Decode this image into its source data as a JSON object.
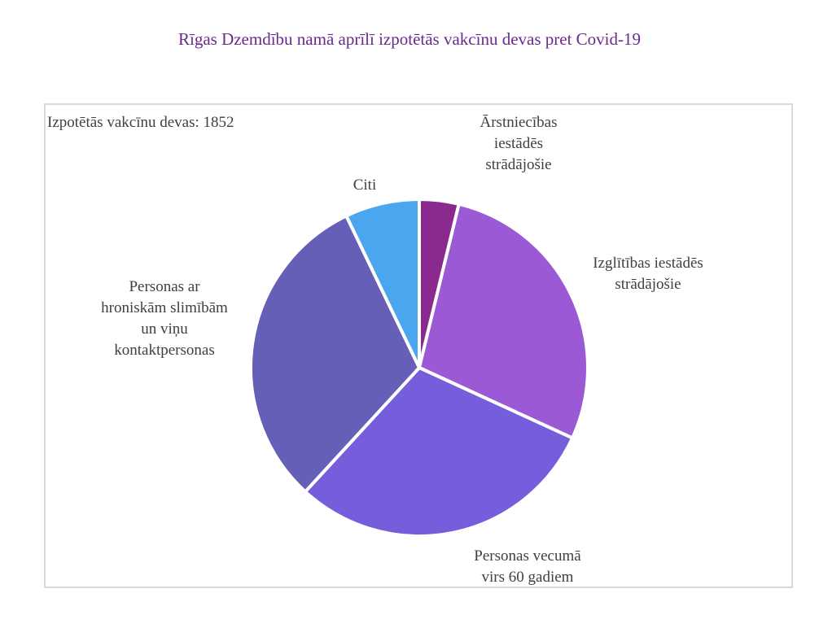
{
  "title": "Rīgas Dzemdību namā aprīlī izpotētās vakcīnu devas pret Covid-19",
  "note": "Izpotētās vakcīnu devas: 1852",
  "chart_data": {
    "type": "pie",
    "title": "Rīgas Dzemdību namā aprīlī izpotētās vakcīnu devas pret Covid-19",
    "total": 1852,
    "legend": "none",
    "slices": [
      {
        "label": [
          "Ārstniecības",
          "iestādēs",
          "strādājošie"
        ],
        "value": 70,
        "color": "#8b2a8e"
      },
      {
        "label": [
          "Izglītības iestādēs",
          "strādājošie"
        ],
        "value": 520,
        "color": "#9b59d6"
      },
      {
        "label": [
          "Personas vecumā",
          "virs 60 gadiem"
        ],
        "value": 555,
        "color": "#755ddb"
      },
      {
        "label": [
          "Personas ar",
          "hroniskām slimībām",
          "un viņu",
          "kontaktpersonas"
        ],
        "value": 575,
        "color": "#665fb8"
      },
      {
        "label": [
          "Citi"
        ],
        "value": 132,
        "color": "#4aa6ee"
      }
    ]
  }
}
